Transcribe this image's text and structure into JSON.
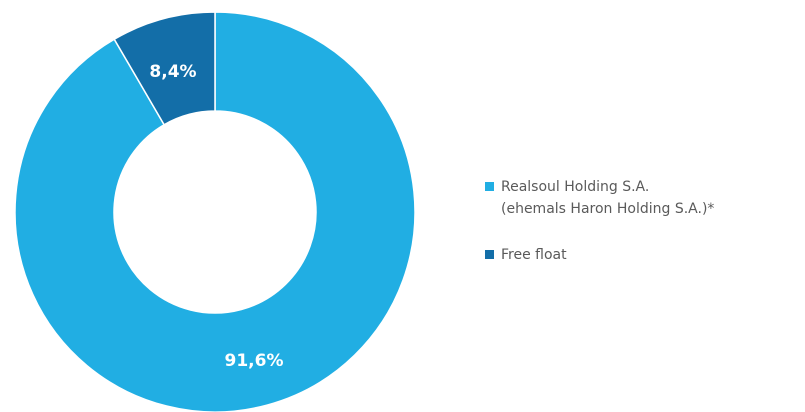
{
  "chart_data": {
    "type": "pie",
    "style": "donut",
    "title": "",
    "slices": [
      {
        "label_lines": [
          "Realsoul Holding S.A.",
          "(ehemals Haron Holding S.A.)*"
        ],
        "value": 91.6,
        "display": "91,6%",
        "color": "#21aee3"
      },
      {
        "label_lines": [
          "Free float"
        ],
        "value": 8.4,
        "display": "8,4%",
        "color": "#136ea8"
      }
    ],
    "legend_position": "right"
  }
}
